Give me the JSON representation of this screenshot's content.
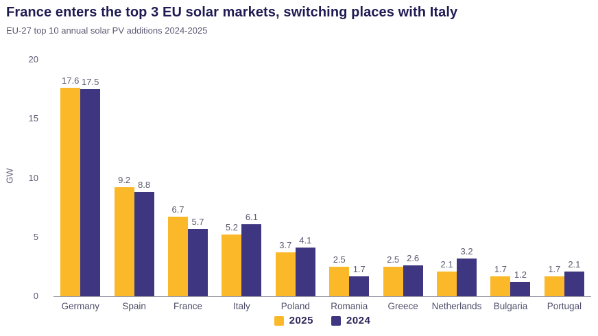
{
  "header": {
    "title": "France enters the top 3 EU solar markets, switching places with Italy",
    "subtitle": "EU-27 top 10 annual solar PV additions 2024-2025"
  },
  "colors": {
    "series_2025": "#fbb829",
    "series_2024": "#3e3680",
    "title_text": "#1e1a52",
    "muted_text": "#5c5b74",
    "axis_line": "#9b9aa9"
  },
  "chart_data": {
    "type": "bar",
    "title": "France enters the top 3 EU solar markets, switching places with Italy",
    "subtitle": "EU-27 top 10 annual solar PV additions 2024-2025",
    "categories": [
      "Germany",
      "Spain",
      "France",
      "Italy",
      "Poland",
      "Romania",
      "Greece",
      "Netherlands",
      "Bulgaria",
      "Portugal"
    ],
    "series": [
      {
        "name": "2025",
        "color": "#fbb829",
        "values": [
          17.6,
          9.2,
          6.7,
          5.2,
          3.7,
          2.5,
          2.5,
          2.1,
          1.7,
          1.7
        ]
      },
      {
        "name": "2024",
        "color": "#3e3680",
        "values": [
          17.5,
          8.8,
          5.7,
          6.1,
          4.1,
          1.7,
          2.6,
          3.2,
          1.2,
          2.1
        ]
      }
    ],
    "xlabel": "",
    "ylabel": "GW",
    "ylim": [
      0,
      20
    ],
    "yticks": [
      0,
      5,
      10,
      15,
      20
    ],
    "grid": false,
    "value_labels": true,
    "legend_position": "bottom"
  }
}
